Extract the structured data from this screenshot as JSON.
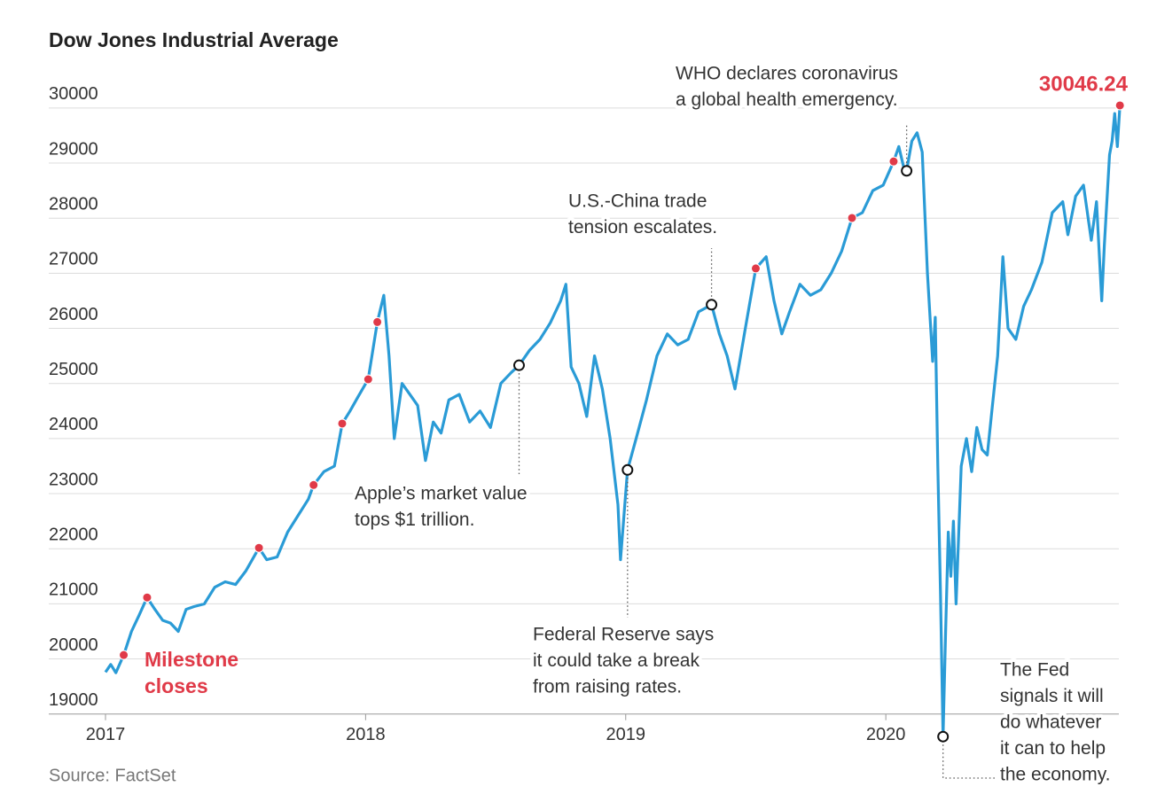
{
  "chart_data": {
    "type": "line",
    "title": "Dow Jones Industrial Average",
    "source": "Source: FactSet",
    "xlim": [
      2017,
      2020.93
    ],
    "xticks": [
      2017,
      2018,
      2019,
      2020
    ],
    "ylim": [
      18400,
      30400
    ],
    "yticks": [
      19000,
      20000,
      21000,
      22000,
      23000,
      24000,
      25000,
      26000,
      27000,
      28000,
      29000,
      30000
    ],
    "grid": true,
    "x": [
      2017.0,
      2017.02,
      2017.04,
      2017.07,
      2017.1,
      2017.13,
      2017.16,
      2017.19,
      2017.22,
      2017.25,
      2017.28,
      2017.31,
      2017.34,
      2017.38,
      2017.42,
      2017.46,
      2017.5,
      2017.54,
      2017.59,
      2017.62,
      2017.66,
      2017.7,
      2017.74,
      2017.78,
      2017.8,
      2017.84,
      2017.88,
      2017.91,
      2017.94,
      2017.97,
      2018.01,
      2018.045,
      2018.07,
      2018.09,
      2018.11,
      2018.14,
      2018.17,
      2018.2,
      2018.23,
      2018.26,
      2018.29,
      2018.32,
      2018.36,
      2018.4,
      2018.44,
      2018.48,
      2018.52,
      2018.56,
      2018.59,
      2018.63,
      2018.67,
      2018.71,
      2018.75,
      2018.77,
      2018.79,
      2018.82,
      2018.85,
      2018.88,
      2018.91,
      2018.94,
      2018.97,
      2018.98,
      2019.007,
      2019.04,
      2019.08,
      2019.12,
      2019.16,
      2019.2,
      2019.24,
      2019.28,
      2019.33,
      2019.36,
      2019.39,
      2019.42,
      2019.46,
      2019.5,
      2019.54,
      2019.57,
      2019.6,
      2019.63,
      2019.67,
      2019.71,
      2019.75,
      2019.79,
      2019.83,
      2019.87,
      2019.91,
      2019.95,
      2019.99,
      2020.03,
      2020.05,
      2020.07,
      2020.08,
      2020.1,
      2020.12,
      2020.14,
      2020.16,
      2020.18,
      2020.19,
      2020.2,
      2020.21,
      2020.22,
      2020.23,
      2020.24,
      2020.25,
      2020.26,
      2020.27,
      2020.29,
      2020.31,
      2020.33,
      2020.35,
      2020.37,
      2020.39,
      2020.41,
      2020.43,
      2020.45,
      2020.47,
      2020.5,
      2020.53,
      2020.56,
      2020.6,
      2020.64,
      2020.68,
      2020.7,
      2020.73,
      2020.76,
      2020.79,
      2020.81,
      2020.83,
      2020.84,
      2020.86,
      2020.87,
      2020.88,
      2020.89,
      2020.9
    ],
    "series": [
      {
        "mode": "line",
        "color": "#2a9bd6",
        "values": [
          19760,
          19900,
          19750,
          20070,
          20500,
          20800,
          21115,
          20900,
          20700,
          20650,
          20500,
          20900,
          20950,
          21000,
          21300,
          21400,
          21350,
          21600,
          22016,
          21800,
          21850,
          22300,
          22600,
          22900,
          23157,
          23400,
          23500,
          24272,
          24500,
          24750,
          25075,
          26115,
          26600,
          25500,
          24000,
          25000,
          24800,
          24600,
          23600,
          24300,
          24100,
          24700,
          24800,
          24300,
          24500,
          24200,
          25000,
          25200,
          25330,
          25600,
          25800,
          26100,
          26500,
          26800,
          25300,
          25000,
          24400,
          25500,
          24900,
          24000,
          22800,
          21800,
          23430,
          24000,
          24700,
          25500,
          25900,
          25700,
          25800,
          26300,
          26430,
          25900,
          25500,
          24900,
          26000,
          27088,
          27300,
          26500,
          25900,
          26300,
          26800,
          26600,
          26700,
          27000,
          27400,
          28004,
          28100,
          28500,
          28600,
          29030,
          29300,
          28900,
          28860,
          29400,
          29550,
          29200,
          27000,
          25400,
          26200,
          23500,
          21200,
          18590,
          20500,
          22300,
          21500,
          22500,
          21000,
          23500,
          24000,
          23400,
          24200,
          23800,
          23700,
          24600,
          25500,
          27300,
          26000,
          25800,
          26400,
          26700,
          27200,
          28100,
          28300,
          27700,
          28400,
          28600,
          27600,
          28300,
          26500,
          27500,
          29150,
          29400,
          29900,
          29300,
          30046.24
        ]
      },
      {
        "mode": "markers",
        "name": "Milestone closes",
        "color": "#e03a48",
        "x": [
          2017.07,
          2017.16,
          2017.59,
          2017.8,
          2017.91,
          2018.01,
          2018.045,
          2019.5,
          2019.87,
          2020.03,
          2020.9
        ],
        "values": [
          20070,
          21115,
          22016,
          23157,
          24272,
          25075,
          26115,
          27088,
          28004,
          29030,
          30046.24
        ]
      }
    ],
    "annotations": [
      {
        "text": [
          "Apple’s market value",
          "tops $1 trillion."
        ],
        "x": 2018.59,
        "y": 25330
      },
      {
        "text": [
          "U.S.-China trade",
          "tension escalates."
        ],
        "x": 2019.33,
        "y": 26430
      },
      {
        "text": [
          "Federal Reserve says",
          "it could take a break",
          "from raising rates."
        ],
        "x": 2019.007,
        "y": 23430
      },
      {
        "text": [
          "WHO declares coronavirus",
          "a global health emergency."
        ],
        "x": 2020.08,
        "y": 28860
      },
      {
        "text": [
          "The Fed",
          "signals it will",
          "do whatever",
          "it can to help",
          "the economy."
        ],
        "x": 2020.22,
        "y": 18590
      }
    ]
  }
}
